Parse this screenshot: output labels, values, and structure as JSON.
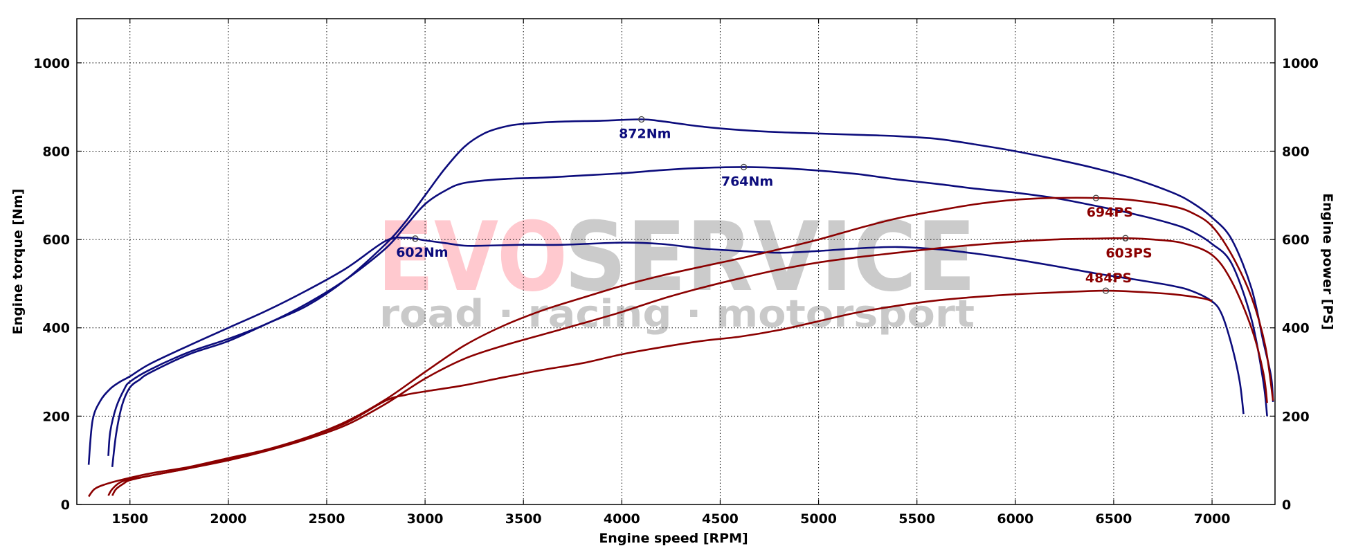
{
  "watermark": {
    "brand_part1": "EVO",
    "brand_part2": "SERVICE",
    "tagline": "road  ·  racing  ·  motorsport",
    "color_part1": "#ffc9cf",
    "color_part2": "#cbcbcb"
  },
  "chart_data": {
    "type": "line",
    "xlabel": "Engine speed [RPM]",
    "ylabel_left": "Engine torque [Nm]",
    "ylabel_right": "Engine power [PS]",
    "xlim": [
      1230,
      7320
    ],
    "ylim_left": [
      0,
      1100
    ],
    "ylim_right": [
      0,
      1100
    ],
    "x_ticks": [
      1500,
      2000,
      2500,
      3000,
      3500,
      4000,
      4500,
      5000,
      5500,
      6000,
      6500,
      7000
    ],
    "y_ticks": [
      0,
      200,
      400,
      600,
      800,
      1000
    ],
    "grid": true,
    "torque_color": "#0c0c7c",
    "power_color": "#8b0000",
    "series": [
      {
        "kind": "torque",
        "axis": "left",
        "points": [
          [
            1290,
            90
          ],
          [
            1310,
            190
          ],
          [
            1350,
            235
          ],
          [
            1400,
            262
          ],
          [
            1450,
            278
          ],
          [
            1500,
            290
          ],
          [
            1600,
            318
          ],
          [
            1800,
            360
          ],
          [
            2000,
            400
          ],
          [
            2200,
            440
          ],
          [
            2400,
            485
          ],
          [
            2600,
            535
          ],
          [
            2800,
            597
          ],
          [
            2900,
            604
          ],
          [
            2950,
            602
          ],
          [
            3000,
            598
          ],
          [
            3100,
            592
          ],
          [
            3200,
            586
          ],
          [
            3300,
            586
          ],
          [
            3500,
            588
          ],
          [
            3700,
            588
          ],
          [
            4000,
            593
          ],
          [
            4200,
            590
          ],
          [
            4400,
            580
          ],
          [
            4600,
            574
          ],
          [
            4800,
            570
          ],
          [
            5000,
            574
          ],
          [
            5200,
            580
          ],
          [
            5400,
            583
          ],
          [
            5600,
            578
          ],
          [
            5800,
            568
          ],
          [
            6000,
            555
          ],
          [
            6200,
            540
          ],
          [
            6400,
            524
          ],
          [
            6600,
            510
          ],
          [
            6800,
            495
          ],
          [
            6900,
            483
          ],
          [
            7000,
            460
          ],
          [
            7050,
            430
          ],
          [
            7100,
            360
          ],
          [
            7140,
            280
          ],
          [
            7160,
            205
          ]
        ],
        "peak": {
          "x": 2950,
          "y": 602,
          "label": "602Nm"
        }
      },
      {
        "kind": "torque",
        "axis": "left",
        "points": [
          [
            1390,
            110
          ],
          [
            1400,
            165
          ],
          [
            1430,
            220
          ],
          [
            1470,
            260
          ],
          [
            1500,
            278
          ],
          [
            1600,
            305
          ],
          [
            1800,
            345
          ],
          [
            2000,
            375
          ],
          [
            2200,
            410
          ],
          [
            2400,
            455
          ],
          [
            2600,
            510
          ],
          [
            2800,
            580
          ],
          [
            2900,
            630
          ],
          [
            3000,
            680
          ],
          [
            3100,
            710
          ],
          [
            3200,
            728
          ],
          [
            3400,
            737
          ],
          [
            3600,
            740
          ],
          [
            3800,
            745
          ],
          [
            4000,
            750
          ],
          [
            4200,
            757
          ],
          [
            4400,
            762
          ],
          [
            4620,
            764
          ],
          [
            4800,
            762
          ],
          [
            5000,
            756
          ],
          [
            5200,
            748
          ],
          [
            5400,
            736
          ],
          [
            5600,
            726
          ],
          [
            5800,
            715
          ],
          [
            6000,
            706
          ],
          [
            6200,
            694
          ],
          [
            6400,
            677
          ],
          [
            6600,
            658
          ],
          [
            6800,
            635
          ],
          [
            6900,
            618
          ],
          [
            7000,
            590
          ],
          [
            7100,
            545
          ],
          [
            7200,
            420
          ],
          [
            7260,
            280
          ],
          [
            7280,
            200
          ]
        ],
        "peak": {
          "x": 4620,
          "y": 764,
          "label": "764Nm"
        }
      },
      {
        "kind": "torque",
        "axis": "left",
        "points": [
          [
            1410,
            85
          ],
          [
            1430,
            160
          ],
          [
            1460,
            225
          ],
          [
            1500,
            265
          ],
          [
            1550,
            283
          ],
          [
            1600,
            298
          ],
          [
            1800,
            340
          ],
          [
            2000,
            370
          ],
          [
            2200,
            410
          ],
          [
            2400,
            450
          ],
          [
            2600,
            510
          ],
          [
            2800,
            590
          ],
          [
            2900,
            640
          ],
          [
            3000,
            700
          ],
          [
            3100,
            760
          ],
          [
            3200,
            810
          ],
          [
            3300,
            840
          ],
          [
            3400,
            855
          ],
          [
            3500,
            862
          ],
          [
            3700,
            867
          ],
          [
            3900,
            869
          ],
          [
            4100,
            872
          ],
          [
            4200,
            868
          ],
          [
            4400,
            856
          ],
          [
            4600,
            848
          ],
          [
            4800,
            843
          ],
          [
            5000,
            840
          ],
          [
            5200,
            837
          ],
          [
            5400,
            834
          ],
          [
            5600,
            828
          ],
          [
            5800,
            815
          ],
          [
            6000,
            800
          ],
          [
            6200,
            782
          ],
          [
            6400,
            762
          ],
          [
            6600,
            738
          ],
          [
            6800,
            706
          ],
          [
            6900,
            683
          ],
          [
            7000,
            650
          ],
          [
            7100,
            600
          ],
          [
            7200,
            490
          ],
          [
            7260,
            370
          ],
          [
            7300,
            290
          ],
          [
            7310,
            232
          ]
        ],
        "peak": {
          "x": 4100,
          "y": 872,
          "label": "872Nm"
        }
      },
      {
        "kind": "power",
        "axis": "right",
        "points": [
          [
            1290,
            18
          ],
          [
            1320,
            35
          ],
          [
            1370,
            45
          ],
          [
            1450,
            55
          ],
          [
            1600,
            70
          ],
          [
            1800,
            85
          ],
          [
            2000,
            105
          ],
          [
            2200,
            125
          ],
          [
            2400,
            152
          ],
          [
            2600,
            185
          ],
          [
            2800,
            235
          ],
          [
            2900,
            248
          ],
          [
            3000,
            256
          ],
          [
            3200,
            270
          ],
          [
            3400,
            288
          ],
          [
            3600,
            305
          ],
          [
            3800,
            320
          ],
          [
            4000,
            340
          ],
          [
            4200,
            356
          ],
          [
            4400,
            370
          ],
          [
            4600,
            380
          ],
          [
            4800,
            395
          ],
          [
            5000,
            415
          ],
          [
            5200,
            435
          ],
          [
            5400,
            450
          ],
          [
            5600,
            462
          ],
          [
            5800,
            470
          ],
          [
            6000,
            476
          ],
          [
            6200,
            480
          ],
          [
            6300,
            482
          ],
          [
            6460,
            484
          ],
          [
            6600,
            482
          ],
          [
            6800,
            476
          ],
          [
            6950,
            467
          ],
          [
            7000,
            460
          ]
        ],
        "peak": {
          "x": 6460,
          "y": 484,
          "label": "484PS"
        }
      },
      {
        "kind": "power",
        "axis": "right",
        "points": [
          [
            1390,
            20
          ],
          [
            1410,
            35
          ],
          [
            1450,
            50
          ],
          [
            1500,
            57
          ],
          [
            1600,
            65
          ],
          [
            1800,
            82
          ],
          [
            2000,
            100
          ],
          [
            2200,
            122
          ],
          [
            2400,
            148
          ],
          [
            2600,
            180
          ],
          [
            2800,
            228
          ],
          [
            3000,
            285
          ],
          [
            3200,
            330
          ],
          [
            3400,
            360
          ],
          [
            3600,
            385
          ],
          [
            3800,
            410
          ],
          [
            4000,
            436
          ],
          [
            4200,
            465
          ],
          [
            4400,
            490
          ],
          [
            4600,
            512
          ],
          [
            4800,
            532
          ],
          [
            5000,
            548
          ],
          [
            5200,
            560
          ],
          [
            5400,
            570
          ],
          [
            5600,
            580
          ],
          [
            5800,
            588
          ],
          [
            6000,
            595
          ],
          [
            6200,
            600
          ],
          [
            6400,
            602
          ],
          [
            6560,
            603
          ],
          [
            6700,
            600
          ],
          [
            6850,
            592
          ],
          [
            7000,
            565
          ],
          [
            7100,
            505
          ],
          [
            7200,
            400
          ],
          [
            7260,
            300
          ],
          [
            7280,
            230
          ]
        ],
        "peak": {
          "x": 6560,
          "y": 603,
          "label": "603PS"
        }
      },
      {
        "kind": "power",
        "axis": "right",
        "points": [
          [
            1410,
            20
          ],
          [
            1430,
            35
          ],
          [
            1470,
            48
          ],
          [
            1500,
            55
          ],
          [
            1600,
            65
          ],
          [
            1800,
            82
          ],
          [
            2000,
            102
          ],
          [
            2200,
            124
          ],
          [
            2400,
            152
          ],
          [
            2600,
            188
          ],
          [
            2800,
            238
          ],
          [
            3000,
            300
          ],
          [
            3200,
            360
          ],
          [
            3400,
            405
          ],
          [
            3600,
            440
          ],
          [
            3800,
            468
          ],
          [
            4000,
            495
          ],
          [
            4200,
            518
          ],
          [
            4400,
            538
          ],
          [
            4600,
            557
          ],
          [
            4800,
            578
          ],
          [
            5000,
            600
          ],
          [
            5200,
            625
          ],
          [
            5400,
            648
          ],
          [
            5600,
            665
          ],
          [
            5800,
            680
          ],
          [
            6000,
            690
          ],
          [
            6200,
            694
          ],
          [
            6410,
            694
          ],
          [
            6600,
            689
          ],
          [
            6800,
            675
          ],
          [
            6900,
            660
          ],
          [
            7000,
            630
          ],
          [
            7100,
            565
          ],
          [
            7200,
            470
          ],
          [
            7270,
            360
          ],
          [
            7310,
            235
          ]
        ],
        "peak": {
          "x": 6410,
          "y": 694,
          "label": "694PS"
        }
      }
    ]
  }
}
